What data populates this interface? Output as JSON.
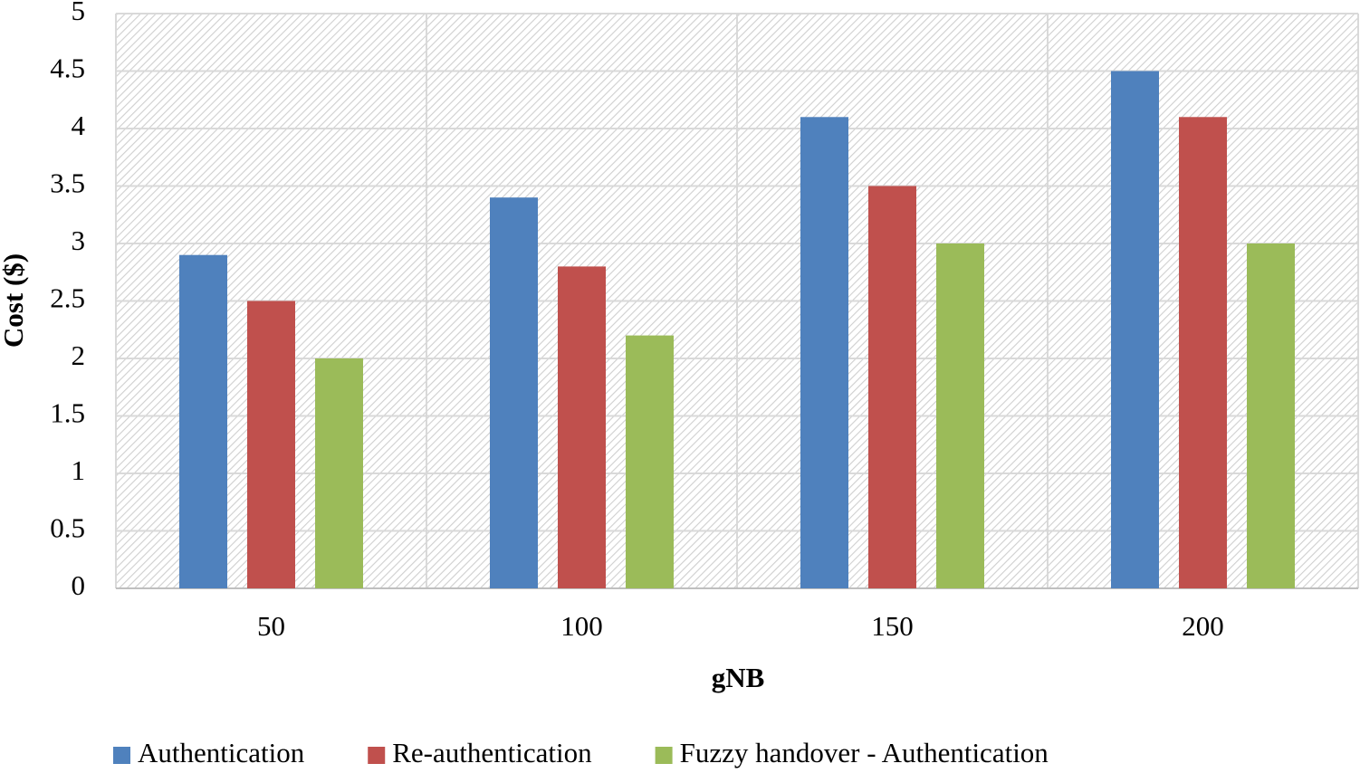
{
  "chart_data": {
    "type": "bar",
    "x_label": "gNB",
    "y_label": "Cost ($)",
    "categories": [
      "50",
      "100",
      "150",
      "200"
    ],
    "series": [
      {
        "name": "Authentication",
        "color": "#4f81bd",
        "values": [
          2.9,
          3.4,
          4.1,
          4.5
        ]
      },
      {
        "name": "Re-authentication",
        "color": "#c0504d",
        "values": [
          2.5,
          2.8,
          3.5,
          4.1
        ]
      },
      {
        "name": "Fuzzy handover - Authentication",
        "color": "#9bbb59",
        "values": [
          2.0,
          2.2,
          3.0,
          3.0
        ]
      }
    ],
    "ylim": [
      0,
      5
    ],
    "yticks": [
      0,
      0.5,
      1,
      1.5,
      2,
      2.5,
      3,
      3.5,
      4,
      4.5,
      5
    ],
    "grid": true,
    "legend": "bottom"
  }
}
